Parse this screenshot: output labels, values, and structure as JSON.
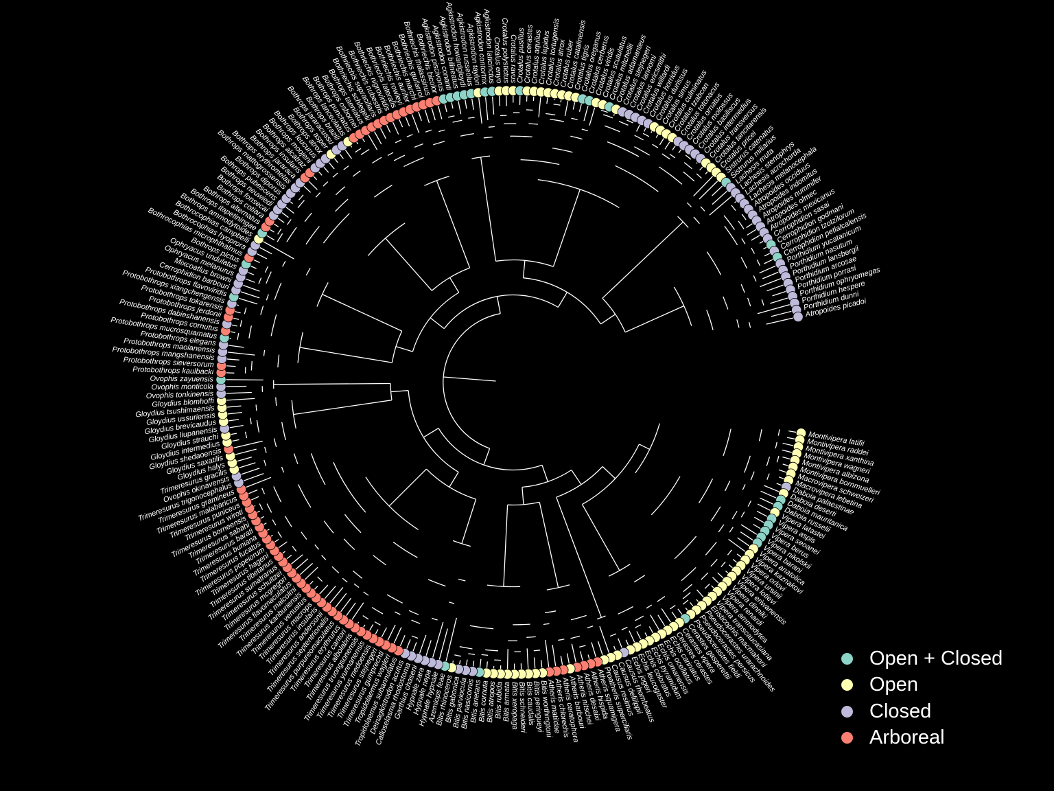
{
  "legend": [
    {
      "key": "oc",
      "label": "Open + Closed",
      "color": "#8dd3c7"
    },
    {
      "key": "o",
      "label": "Open",
      "color": "#ffffb3"
    },
    {
      "key": "c",
      "label": "Closed",
      "color": "#bebada"
    },
    {
      "key": "a",
      "label": "Arboreal",
      "color": "#fb8072"
    }
  ],
  "clades": [
    {
      "name": "vipera",
      "tips": [
        [
          "Montivipera latifii",
          "o"
        ],
        [
          "Montivipera raddei",
          "o"
        ],
        [
          "Montivipera xanthina",
          "o"
        ],
        [
          "Montivipera wagneri",
          "o"
        ],
        [
          "Montivipera albizona",
          "o"
        ],
        [
          "Montivipera bornmuelleri",
          "o"
        ],
        [
          "Macrovipera schweizeri",
          "o"
        ],
        [
          "Macrovipera lebetina",
          "o"
        ],
        [
          "Daboia palaestinae",
          "c"
        ],
        [
          "Daboia deserti",
          "o"
        ],
        [
          "Daboia mauritanica",
          "oc"
        ],
        [
          "Daboia russelii",
          "oc"
        ],
        [
          "Vipera latastei",
          "o"
        ],
        [
          "Vipera aspis",
          "oc"
        ],
        [
          "Vipera seoanei",
          "oc"
        ],
        [
          "Vipera berus",
          "oc"
        ],
        [
          "Vipera nikolskii",
          "oc"
        ],
        [
          "Vipera barani",
          "oc"
        ],
        [
          "Vipera anatolica",
          "o"
        ],
        [
          "Vipera kaznakovi",
          "o"
        ],
        [
          "Vipera orlovi",
          "o"
        ],
        [
          "Vipera ursinii",
          "o"
        ],
        [
          "Vipera lotievi",
          "o"
        ],
        [
          "Vipera eriwanensis",
          "o"
        ],
        [
          "Vipera dinniki",
          "o"
        ],
        [
          "Vipera renardi",
          "o"
        ],
        [
          "Vipera ammodytes",
          "o"
        ],
        [
          "Vipera transcaucasiana",
          "o"
        ],
        [
          "Eristicophis macmahoni",
          "o"
        ],
        [
          "Pseudocerastes urarachnoides",
          "o"
        ],
        [
          "Pseudocerastes persicus",
          "o"
        ],
        [
          "Pseudocerastes fieldi",
          "o"
        ]
      ]
    },
    {
      "name": "echis",
      "tips": [
        [
          "Cerastes gasperettii",
          "oc"
        ],
        [
          "Cerastes vipera",
          "o"
        ],
        [
          "Cerastes cerastes",
          "o"
        ],
        [
          "Echis carinatus",
          "o"
        ],
        [
          "Echis ocellatus",
          "o"
        ],
        [
          "Echis omanensis",
          "o"
        ],
        [
          "Echis pyramidum",
          "o"
        ],
        [
          "Echis coloratus",
          "o"
        ],
        [
          "Echis leucogaster",
          "o"
        ],
        [
          "Echis jogeri",
          "o"
        ]
      ]
    },
    {
      "name": "causus",
      "tips": [
        [
          "Causus rhombeatus",
          "c"
        ],
        [
          "Causus defilippii",
          "o"
        ],
        [
          "Causus resimus",
          "o"
        ]
      ]
    },
    {
      "name": "atheris",
      "tips": [
        [
          "Proatheris superciliaris",
          "o"
        ],
        [
          "Atheris squamigera",
          "a"
        ],
        [
          "Atheris hispida",
          "a"
        ],
        [
          "Atheris desaixi",
          "a"
        ],
        [
          "Atheris nitschei",
          "a"
        ],
        [
          "Atheris barbouri",
          "o"
        ],
        [
          "Atheris ceratophora",
          "a"
        ],
        [
          "Atheris chlorechis",
          "a"
        ],
        [
          "Atheris matildae",
          "a"
        ]
      ]
    },
    {
      "name": "bitis",
      "tips": [
        [
          "Bitis worthingtoni",
          "o"
        ],
        [
          "Bitis peringueyi",
          "o"
        ],
        [
          "Bitis caudalis",
          "o"
        ],
        [
          "Bitis schneideri",
          "o"
        ],
        [
          "Bitis xeropaga",
          "o"
        ],
        [
          "Bitis armata",
          "o"
        ],
        [
          "Bitis rubida",
          "o"
        ],
        [
          "Bitis atropos",
          "o"
        ],
        [
          "Bitis cornuta",
          "o"
        ],
        [
          "Bitis arietans",
          "oc"
        ],
        [
          "Bitis nasicornis",
          "c"
        ],
        [
          "Bitis parviocula",
          "c"
        ],
        [
          "Bitis gabonica",
          "c"
        ],
        [
          "Bitis rhinoceros",
          "o"
        ]
      ]
    },
    {
      "name": "basal",
      "tips": [
        [
          "Azemiops feae",
          "oc"
        ],
        [
          "Hypnale hypnale",
          "c"
        ],
        [
          "Hypnale nepa",
          "c"
        ],
        [
          "Hypnale zara",
          "c"
        ],
        [
          "Garthius chaseni",
          "c"
        ],
        [
          "Calloselasma rhodostoma",
          "c"
        ],
        [
          "Deinagkistrodon acutus",
          "c"
        ],
        [
          "Tropidolaemus subannulatus",
          "a"
        ],
        [
          "Tropidolaemus wagleri",
          "a"
        ]
      ]
    },
    {
      "name": "trimeresurus",
      "tips": [
        [
          "Trimeresurus gumprechti",
          "a"
        ],
        [
          "Trimeresurus stejnegeri",
          "a"
        ],
        [
          "Trimeresurus medoensis",
          "a"
        ],
        [
          "Trimeresurus yunnanensis",
          "a"
        ],
        [
          "Trimeresurus truongsonensis",
          "a"
        ],
        [
          "Trimeresurus albolabris",
          "a"
        ],
        [
          "Trimeresurus cantori",
          "a"
        ],
        [
          "Trimeresurus erythrurus",
          "a"
        ],
        [
          "Trimeresurus purpureomaculatus",
          "a"
        ],
        [
          "Trimeresurus septentrionalis",
          "a"
        ],
        [
          "Trimeresurus andersonii",
          "a"
        ],
        [
          "Trimeresurus insularis",
          "a"
        ],
        [
          "Trimeresurus macrops",
          "a"
        ],
        [
          "Trimeresurus venustus",
          "a"
        ],
        [
          "Trimeresurus kanburiensis",
          "a"
        ],
        [
          "Trimeresurus malcolmi",
          "a"
        ],
        [
          "Trimeresurus flavomaculatus",
          "a"
        ],
        [
          "Trimeresurus mcgregori",
          "a"
        ],
        [
          "Trimeresurus schultzei",
          "a"
        ],
        [
          "Trimeresurus sumatranus",
          "a"
        ],
        [
          "Trimeresurus tibetanus",
          "a"
        ],
        [
          "Trimeresurus hageni",
          "a"
        ],
        [
          "Trimeresurus popeiorum",
          "a"
        ],
        [
          "Trimeresurus fucatus",
          "a"
        ],
        [
          "Trimeresurus buniana",
          "a"
        ],
        [
          "Trimeresurus barati",
          "a"
        ],
        [
          "Trimeresurus sabahi",
          "a"
        ],
        [
          "Trimeresurus borneensis",
          "a"
        ],
        [
          "Trimeresurus wiroti",
          "a"
        ],
        [
          "Trimeresurus puniceus",
          "a"
        ],
        [
          "Trimeresurus malabaricus",
          "a"
        ],
        [
          "Trimeresurus gramineus",
          "a"
        ],
        [
          "Trimeresurus trigonocephalus",
          "c"
        ],
        [
          "Ovophis okinavensis",
          "c"
        ],
        [
          "Trimeresurus gracilis",
          "o"
        ]
      ]
    },
    {
      "name": "gloydius",
      "tips": [
        [
          "Gloydius halys",
          "o"
        ],
        [
          "Gloydius saxatilis",
          "o"
        ],
        [
          "Gloydius shedaoensis",
          "a"
        ],
        [
          "Gloydius intermedius",
          "o"
        ],
        [
          "Gloydius strauchi",
          "o"
        ],
        [
          "Gloydius liupanensis",
          "c"
        ],
        [
          "Gloydius brevicaudus",
          "o"
        ],
        [
          "Gloydius ussuriensis",
          "o"
        ],
        [
          "Gloydius tsushimaensis",
          "o"
        ],
        [
          "Gloydius blomhoffi",
          "o"
        ]
      ]
    },
    {
      "name": "ovophis",
      "tips": [
        [
          "Ovophis tonkinensis",
          "c"
        ],
        [
          "Ovophis monticola",
          "c"
        ],
        [
          "Ovophis zayuensis",
          "oc"
        ]
      ]
    },
    {
      "name": "protobothrops",
      "tips": [
        [
          "Protobothrops kaulbacki",
          "a"
        ],
        [
          "Protobothrops sieversorum",
          "a"
        ],
        [
          "Protobothrops mangshanensis",
          "c"
        ],
        [
          "Protobothrops maolanensis",
          "c"
        ],
        [
          "Protobothrops elegans",
          "c"
        ],
        [
          "Protobothrops mucrosquamatus",
          "oc"
        ],
        [
          "Protobothrops cornutus",
          "a"
        ],
        [
          "Protobothrops dabieshanensis",
          "c"
        ],
        [
          "Protobothrops jerdonii",
          "a"
        ],
        [
          "Protobothrops tokarensis",
          "a"
        ],
        [
          "Protobothrops xiangchengensis",
          "c"
        ],
        [
          "Protobothrops flavoviridis",
          "oc"
        ]
      ]
    },
    {
      "name": "neotropical",
      "tips": [
        [
          "Cerrophidion barbouri",
          "c"
        ],
        [
          "Mixcoatlus browni",
          "c"
        ],
        [
          "Ophryacus melanurus",
          "c"
        ],
        [
          "Ophryacus undulatus",
          "c"
        ],
        [
          "Bothrops pictus",
          "oc"
        ],
        [
          "Bothrocophias microphthalmus",
          "a"
        ],
        [
          "Bothrocophias hyoprora",
          "c"
        ],
        [
          "Bothrocophias campbelli",
          "c"
        ],
        [
          "Bothrops ammodytoides",
          "o"
        ]
      ]
    },
    {
      "name": "bothrops",
      "tips": [
        [
          "Bothrops itapetiningae",
          "oc"
        ],
        [
          "Bothrops alternatus",
          "a"
        ],
        [
          "Bothrops cotiara",
          "a"
        ],
        [
          "Bothrops fonsecai",
          "c"
        ],
        [
          "Bothrops neuwiedi",
          "c"
        ],
        [
          "Bothrops pubescens",
          "c"
        ],
        [
          "Bothrops diporus",
          "c"
        ],
        [
          "Bothrops mattogrossensis",
          "c"
        ],
        [
          "Bothrops erythromelas",
          "c"
        ],
        [
          "Bothrops jararaca",
          "c"
        ],
        [
          "Bothrops insularis",
          "a"
        ],
        [
          "Bothrops alcatraz",
          "a"
        ],
        [
          "Bothrops moojeni",
          "c"
        ],
        [
          "Bothrops leucurus",
          "c"
        ],
        [
          "Bothrops atrox",
          "c"
        ],
        [
          "Bothrops asper",
          "o"
        ],
        [
          "Bothrops jararacussu",
          "c"
        ],
        [
          "Bothrops brazili",
          "c"
        ],
        [
          "Bothrops lanceolatus",
          "o"
        ],
        [
          "Bothrops punctatus",
          "a"
        ],
        [
          "Bothrops osbornei",
          "a"
        ],
        [
          "Bothrops taeniatus",
          "a"
        ]
      ]
    },
    {
      "name": "bothriechis",
      "tips": [
        [
          "Bothriechis schlegelii",
          "a"
        ],
        [
          "Bothriechis supraciliaris",
          "a"
        ],
        [
          "Bothriechis nubestris",
          "a"
        ],
        [
          "Bothriechis nigroviridis",
          "a"
        ],
        [
          "Bothriechis lateralis",
          "a"
        ],
        [
          "Bothriechis rowleyi",
          "a"
        ],
        [
          "Bothriechis aurifer",
          "a"
        ],
        [
          "Bothriechis marchi",
          "a"
        ],
        [
          "Bothriechis guifarroi",
          "a"
        ],
        [
          "Bothriechis thalassinus",
          "a"
        ],
        [
          "Bothriechis bicolor",
          "a"
        ]
      ]
    },
    {
      "name": "agkistrodon",
      "tips": [
        [
          "Agkistrodon piscivorus",
          "oc"
        ],
        [
          "Agkistrodon conanti",
          "oc"
        ],
        [
          "Agkistrodon bilineatus",
          "oc"
        ],
        [
          "Agkistrodon howardgloydi",
          "oc"
        ],
        [
          "Agkistrodon russeolus",
          "oc"
        ],
        [
          "Agkistrodon taylori",
          "o"
        ],
        [
          "Agkistrodon contortrix",
          "oc"
        ],
        [
          "Agkistrodon laticinctus",
          "oc"
        ]
      ]
    },
    {
      "name": "crotalus",
      "tips": [
        [
          "Crotalus enyo",
          "o"
        ],
        [
          "Crotalus polystictus",
          "o"
        ],
        [
          "Crotalus ravus",
          "o"
        ],
        [
          "Crotalus pusillus",
          "oc"
        ],
        [
          "Crotalus cerastes",
          "o"
        ],
        [
          "Crotalus aquilus",
          "o"
        ],
        [
          "Crotalus lepidus",
          "o"
        ],
        [
          "Crotalus tortugensis",
          "o"
        ],
        [
          "Crotalus atrox",
          "o"
        ],
        [
          "Crotalus ruber",
          "o"
        ],
        [
          "Crotalus catalinensis",
          "o"
        ],
        [
          "Crotalus tigris",
          "o"
        ],
        [
          "Crotalus oreganus",
          "oc"
        ],
        [
          "Crotalus cerberus",
          "oc"
        ],
        [
          "Crotalus viridis",
          "o"
        ],
        [
          "Crotalus scutulatus",
          "o"
        ],
        [
          "Crotalus mitchellii",
          "oc"
        ],
        [
          "Crotalus adamanteus",
          "o"
        ],
        [
          "Crotalus stejnegeri",
          "c"
        ],
        [
          "Crotalus lannomi",
          "c"
        ],
        [
          "Crotalus ericsmithi",
          "c"
        ],
        [
          "Crotalus willardi",
          "c"
        ],
        [
          "Crotalus horridus",
          "c"
        ],
        [
          "Crotalus durissus",
          "o"
        ],
        [
          "Crotalus simus",
          "o"
        ],
        [
          "Crotalus culminatus",
          "o"
        ],
        [
          "Crotalus tzabcan",
          "o"
        ],
        [
          "Crotalus totonacus",
          "c"
        ],
        [
          "Crotalus ornatus",
          "c"
        ],
        [
          "Crotalus molossus",
          "c"
        ],
        [
          "Crotalus basiliscus",
          "c"
        ],
        [
          "Crotalus intermedius",
          "c"
        ],
        [
          "Crotalus transversus",
          "o"
        ],
        [
          "Crotalus tancitarensis",
          "o"
        ]
      ]
    },
    {
      "name": "sistrurus",
      "tips": [
        [
          "Crotalus pricei",
          "o"
        ],
        [
          "Sistrurus catenatus",
          "o"
        ],
        [
          "Sistrurus miliarius",
          "oc"
        ],
        [
          "Lachesis muta",
          "c"
        ],
        [
          "Lachesis stenophrys",
          "c"
        ]
      ]
    },
    {
      "name": "central",
      "tips": [
        [
          "Lachesis acrochorda",
          "c"
        ],
        [
          "Lachesis melanocephala",
          "c"
        ],
        [
          "Atropoides occiduus",
          "c"
        ],
        [
          "Atropoides indomitus",
          "c"
        ],
        [
          "Atropoides nummifer",
          "c"
        ],
        [
          "Atropoides olmec",
          "c"
        ],
        [
          "Atropoides mexicanus",
          "c"
        ],
        [
          "Cerrophidion sasai",
          "c"
        ],
        [
          "Cerrophidion godmani",
          "oc"
        ],
        [
          "Cerrophidion tzotzilorum",
          "c"
        ],
        [
          "Cerrophidion petlalcalensis",
          "oc"
        ],
        [
          "Porthidium yucatanicum",
          "c"
        ],
        [
          "Porthidium nasutum",
          "c"
        ],
        [
          "Porthidium lansbergii",
          "c"
        ],
        [
          "Porthidium arcosae",
          "c"
        ],
        [
          "Porthidium porrasi",
          "c"
        ],
        [
          "Porthidium ophryomegas",
          "c"
        ],
        [
          "Porthidium hespere",
          "c"
        ],
        [
          "Porthidium dunni",
          "c"
        ],
        [
          "Atropoides picadoi",
          "c"
        ]
      ]
    }
  ]
}
